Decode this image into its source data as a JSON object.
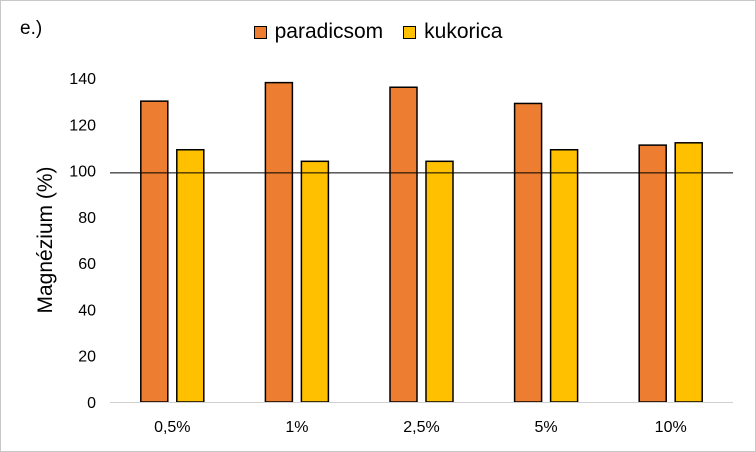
{
  "chart_data": {
    "type": "bar",
    "panel_label": "e.)",
    "title": "",
    "xlabel": "",
    "ylabel": "Magnézium (%)",
    "ylim": [
      0,
      140
    ],
    "yticks": [
      0,
      20,
      40,
      60,
      80,
      100,
      120,
      140
    ],
    "grid": false,
    "legend_position": "top-center",
    "reference_line": 99,
    "categories": [
      "0,5%",
      "1%",
      "2,5%",
      "5%",
      "10%"
    ],
    "series": [
      {
        "name": "paradicsom",
        "color": "#ED7D31",
        "values": [
          130,
          138,
          136,
          129,
          111
        ]
      },
      {
        "name": "kukorica",
        "color": "#FFC000",
        "values": [
          109,
          104,
          104,
          109,
          112
        ]
      }
    ]
  }
}
